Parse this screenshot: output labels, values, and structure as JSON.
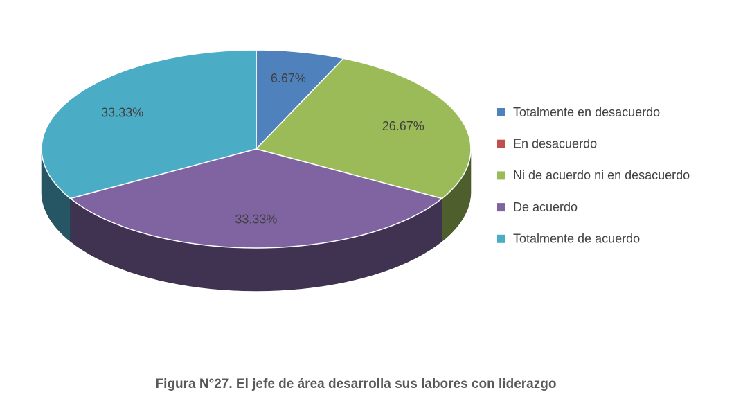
{
  "chart_data": {
    "type": "pie",
    "title": "Figura N°27. El jefe de área desarrolla sus labores con liderazgo",
    "categories": [
      "Totalmente en desacuerdo",
      "En desacuerdo",
      "Ni de acuerdo ni en desacuerdo",
      "De acuerdo",
      "Totalmente de acuerdo"
    ],
    "values": [
      6.67,
      0,
      26.67,
      33.33,
      33.33
    ],
    "value_labels": [
      "6.67%",
      null,
      "26.67%",
      "33.33%",
      "33.33%"
    ],
    "colors": [
      "#4f81bd",
      "#c0504d",
      "#9bbb59",
      "#8064a2",
      "#4bacc6"
    ],
    "legend": "right"
  }
}
